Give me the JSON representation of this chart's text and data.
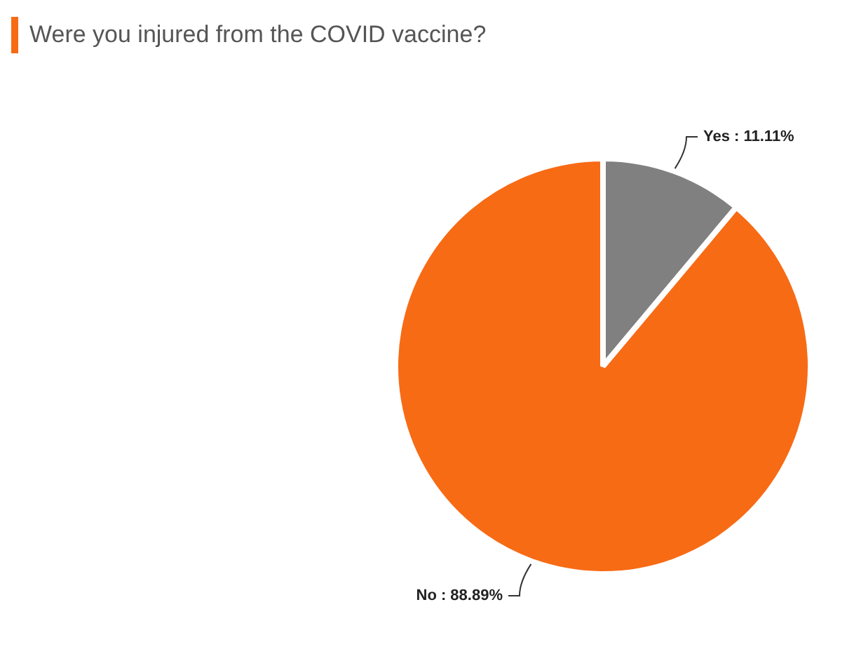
{
  "chart_data": {
    "type": "pie",
    "title": "Were you injured from the COVID vaccine?",
    "categories": [
      "Yes",
      "No"
    ],
    "values": [
      11.11,
      88.89
    ],
    "value_labels": [
      ": 11.11%",
      ": 88.89%"
    ],
    "colors": [
      "#808080",
      "#f76b15"
    ],
    "legend": false
  }
}
